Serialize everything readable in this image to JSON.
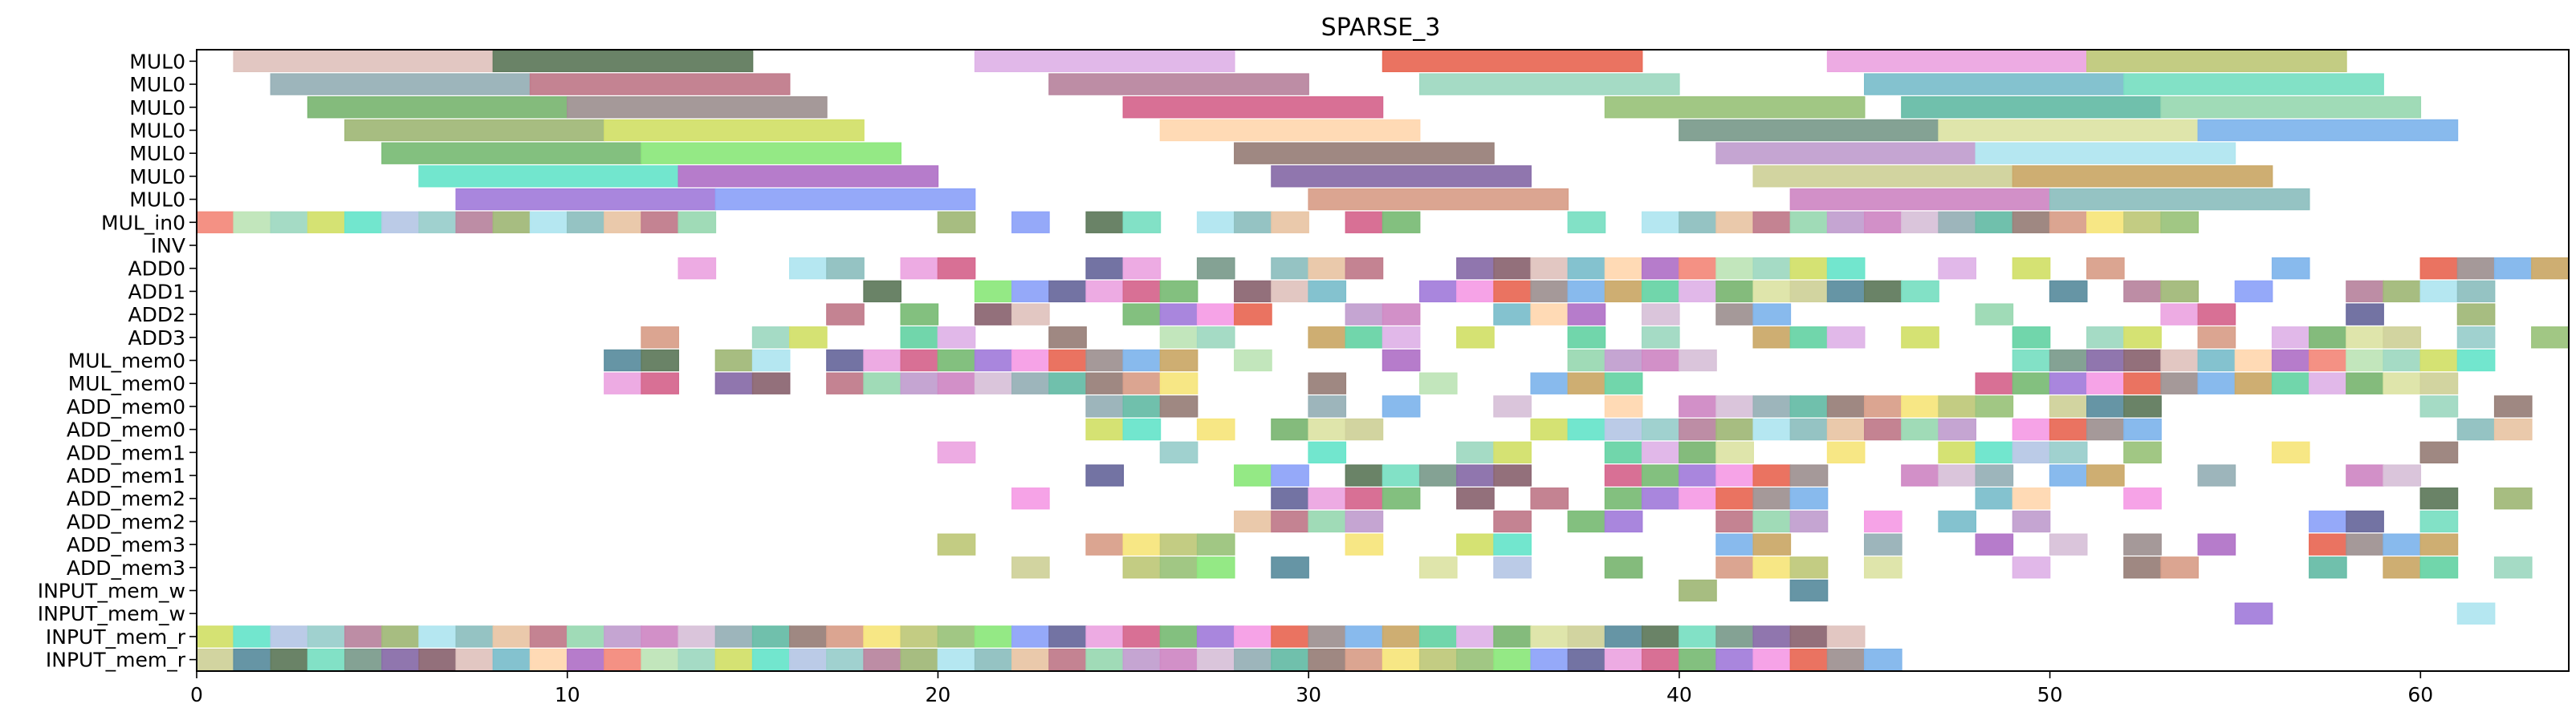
{
  "chart_data": {
    "type": "gantt",
    "title": "SPARSE_3",
    "xlabel": "",
    "ylabel": "",
    "xlim": [
      0,
      64
    ],
    "x_ticks": [
      0,
      10,
      20,
      30,
      40,
      50,
      60
    ],
    "grid": false,
    "legend": "none",
    "rows": [
      "MUL0",
      "MUL0",
      "MUL0",
      "MUL0",
      "MUL0",
      "MUL0",
      "MUL0",
      "MUL_in0",
      "INV",
      "ADD0",
      "ADD1",
      "ADD2",
      "ADD3",
      "MUL_mem0",
      "MUL_mem0",
      "ADD_mem0",
      "ADD_mem0",
      "ADD_mem1",
      "ADD_mem1",
      "ADD_mem2",
      "ADD_mem2",
      "ADD_mem3",
      "ADD_mem3",
      "INPUT_mem_w",
      "INPUT_mem_w",
      "INPUT_mem_r",
      "INPUT_mem_r"
    ],
    "palette": [
      "#e0c4bf",
      "#627c5f",
      "#dfb4e8",
      "#e96c58",
      "#eca6e2",
      "#c0c97c",
      "#98b1b7",
      "#c17c8c",
      "#b987a0",
      "#a0d9c2",
      "#7dbfcc",
      "#7bdfc3",
      "#7db775",
      "#a09393",
      "#d6688f",
      "#9cc47d",
      "#68bda8",
      "#9bd9b3",
      "#a2b97a",
      "#d3e06c",
      "#ffd8b1",
      "#7d9d8e",
      "#dde4a6",
      "#82b6ec",
      "#7cbd78",
      "#8ee87e",
      "#9a827b",
      "#c2a0d0",
      "#b1e6f0",
      "#6ae5cb",
      "#b275c8",
      "#8a6faa",
      "#d0d29b",
      "#cbaa6a",
      "#a47fdb",
      "#8fa4f9",
      "#d9a08b",
      "#d08ac5",
      "#8fc0c0",
      "#b7c8e6",
      "#f38b7d",
      "#8d6874",
      "#5e8fa0",
      "#69d4a6",
      "#f59ee6",
      "#6b6b9e",
      "#f7e67e",
      "#d8c2d9",
      "#e9c6a6",
      "#9bcfcc",
      "#bfe5b8"
    ],
    "tasks": [
      {
        "row": 0,
        "start": 1,
        "end": 8,
        "color": "#e0c4bf"
      },
      {
        "row": 0,
        "start": 8,
        "end": 15,
        "color": "#627c5f"
      },
      {
        "row": 0,
        "start": 21,
        "end": 28,
        "color": "#dfb4e8"
      },
      {
        "row": 0,
        "start": 32,
        "end": 39,
        "color": "#e96c58"
      },
      {
        "row": 0,
        "start": 44,
        "end": 51,
        "color": "#eca6e2"
      },
      {
        "row": 0,
        "start": 51,
        "end": 58,
        "color": "#c0c97c"
      },
      {
        "row": 1,
        "start": 2,
        "end": 9,
        "color": "#98b1b7"
      },
      {
        "row": 1,
        "start": 9,
        "end": 16,
        "color": "#c17c8c"
      },
      {
        "row": 1,
        "start": 23,
        "end": 30,
        "color": "#b987a0"
      },
      {
        "row": 1,
        "start": 33,
        "end": 40,
        "color": "#a0d9c2"
      },
      {
        "row": 1,
        "start": 45,
        "end": 52,
        "color": "#7dbfcc"
      },
      {
        "row": 1,
        "start": 52,
        "end": 59,
        "color": "#7bdfc3"
      },
      {
        "row": 2,
        "start": 3,
        "end": 10,
        "color": "#7db775"
      },
      {
        "row": 2,
        "start": 10,
        "end": 17,
        "color": "#a09393"
      },
      {
        "row": 2,
        "start": 25,
        "end": 32,
        "color": "#d6688f"
      },
      {
        "row": 2,
        "start": 38,
        "end": 45,
        "color": "#9cc47d"
      },
      {
        "row": 2,
        "start": 46,
        "end": 53,
        "color": "#68bda8"
      },
      {
        "row": 2,
        "start": 53,
        "end": 60,
        "color": "#9bd9b3"
      },
      {
        "row": 3,
        "start": 4,
        "end": 11,
        "color": "#a2b97a"
      },
      {
        "row": 3,
        "start": 11,
        "end": 18,
        "color": "#d3e06c"
      },
      {
        "row": 3,
        "start": 26,
        "end": 33,
        "color": "#ffd8b1"
      },
      {
        "row": 3,
        "start": 40,
        "end": 47,
        "color": "#7d9d8e"
      },
      {
        "row": 3,
        "start": 47,
        "end": 54,
        "color": "#dde4a6"
      },
      {
        "row": 3,
        "start": 54,
        "end": 61,
        "color": "#82b6ec"
      },
      {
        "row": 4,
        "start": 5,
        "end": 12,
        "color": "#7cbd78"
      },
      {
        "row": 4,
        "start": 12,
        "end": 19,
        "color": "#8ee87e"
      },
      {
        "row": 4,
        "start": 28,
        "end": 35,
        "color": "#9a827b"
      },
      {
        "row": 4,
        "start": 41,
        "end": 48,
        "color": "#c2a0d0"
      },
      {
        "row": 4,
        "start": 48,
        "end": 55,
        "color": "#b1e6f0"
      },
      {
        "row": 5,
        "start": 6,
        "end": 13,
        "color": "#6ae5cb"
      },
      {
        "row": 5,
        "start": 13,
        "end": 20,
        "color": "#b275c8"
      },
      {
        "row": 5,
        "start": 29,
        "end": 36,
        "color": "#8a6faa"
      },
      {
        "row": 5,
        "start": 42,
        "end": 49,
        "color": "#d0d29b"
      },
      {
        "row": 5,
        "start": 49,
        "end": 56,
        "color": "#cbaa6a"
      },
      {
        "row": 6,
        "start": 7,
        "end": 14,
        "color": "#a47fdb"
      },
      {
        "row": 6,
        "start": 14,
        "end": 21,
        "color": "#8fa4f9"
      },
      {
        "row": 6,
        "start": 30,
        "end": 37,
        "color": "#d9a08b"
      },
      {
        "row": 6,
        "start": 43,
        "end": 50,
        "color": "#d08ac5"
      },
      {
        "row": 6,
        "start": 50,
        "end": 57,
        "color": "#8fc0c0"
      }
    ],
    "cells": [
      [
        7,
        [
          0,
          1,
          2,
          3,
          4,
          5,
          6,
          7,
          8,
          9,
          10,
          11,
          12,
          13,
          20,
          22,
          24,
          25,
          27,
          28,
          29,
          31,
          32,
          37,
          39,
          40,
          41,
          42,
          43,
          44,
          45,
          46,
          47,
          48,
          49,
          50,
          51,
          52,
          53
        ]
      ],
      [
        9,
        [
          13,
          16,
          17,
          19,
          20,
          24,
          25,
          27,
          29,
          30,
          31,
          34,
          35,
          36,
          37,
          38,
          39,
          40,
          41,
          42,
          43,
          44,
          47,
          49,
          51,
          56,
          60,
          61,
          62,
          63
        ]
      ],
      [
        10,
        [
          18,
          21,
          22,
          23,
          24,
          25,
          26,
          28,
          29,
          30,
          33,
          34,
          35,
          36,
          37,
          38,
          39,
          40,
          41,
          42,
          43,
          44,
          45,
          46,
          50,
          52,
          53,
          55,
          58,
          59,
          60,
          61
        ]
      ],
      [
        11,
        [
          17,
          19,
          21,
          22,
          25,
          26,
          27,
          28,
          31,
          32,
          35,
          36,
          37,
          39,
          41,
          42,
          48,
          53,
          54,
          58,
          61
        ]
      ],
      [
        12,
        [
          12,
          15,
          16,
          19,
          20,
          23,
          26,
          27,
          30,
          31,
          32,
          34,
          37,
          39,
          42,
          43,
          44,
          46,
          49,
          51,
          52,
          54,
          56,
          57,
          58,
          59,
          61,
          63
        ]
      ],
      [
        13,
        [
          11,
          12,
          14,
          15,
          17,
          18,
          19,
          20,
          21,
          22,
          23,
          24,
          25,
          26,
          28,
          32,
          37,
          38,
          39,
          40,
          49,
          50,
          51,
          52,
          53,
          54,
          55,
          56,
          57,
          58,
          59,
          60,
          61
        ]
      ],
      [
        14,
        [
          11,
          12,
          14,
          15,
          17,
          18,
          19,
          20,
          21,
          22,
          23,
          24,
          25,
          26,
          30,
          33,
          36,
          37,
          38,
          48,
          49,
          50,
          51,
          52,
          53,
          54,
          55,
          56,
          57,
          58,
          59,
          60
        ]
      ],
      [
        15,
        [
          24,
          25,
          26,
          30,
          32,
          35,
          38,
          40,
          41,
          42,
          43,
          44,
          45,
          46,
          47,
          48,
          50,
          51,
          52,
          60,
          62
        ]
      ],
      [
        16,
        [
          24,
          25,
          27,
          29,
          30,
          31,
          36,
          37,
          38,
          39,
          40,
          41,
          42,
          43,
          44,
          45,
          46,
          47,
          49,
          50,
          51,
          52,
          61,
          62
        ]
      ],
      [
        17,
        [
          20,
          26,
          30,
          34,
          35,
          38,
          39,
          40,
          41,
          44,
          47,
          48,
          49,
          50,
          52,
          56,
          60
        ]
      ],
      [
        18,
        [
          24,
          28,
          29,
          31,
          32,
          33,
          34,
          35,
          38,
          39,
          40,
          41,
          42,
          43,
          46,
          47,
          48,
          50,
          51,
          54,
          58,
          59
        ]
      ],
      [
        19,
        [
          22,
          29,
          30,
          31,
          32,
          34,
          36,
          38,
          39,
          40,
          41,
          42,
          43,
          48,
          49,
          52,
          60,
          62
        ]
      ],
      [
        20,
        [
          28,
          29,
          30,
          31,
          35,
          37,
          38,
          41,
          42,
          43,
          45,
          47,
          49,
          57,
          58,
          60
        ]
      ],
      [
        21,
        [
          20,
          24,
          25,
          26,
          27,
          31,
          34,
          35,
          41,
          42,
          45,
          48,
          50,
          52,
          54,
          57,
          58,
          59,
          60
        ]
      ],
      [
        22,
        [
          22,
          25,
          26,
          27,
          29,
          33,
          35,
          38,
          41,
          42,
          43,
          45,
          49,
          52,
          53,
          57,
          59,
          60,
          62
        ]
      ],
      [
        23,
        [
          40,
          43
        ]
      ],
      [
        24,
        [
          55,
          61
        ]
      ],
      [
        25,
        [
          0,
          1,
          2,
          3,
          4,
          5,
          6,
          7,
          8,
          9,
          10,
          11,
          12,
          13,
          14,
          15,
          16,
          17,
          18,
          19,
          20,
          21,
          22,
          23,
          24,
          25,
          26,
          27,
          28,
          29,
          30,
          31,
          32,
          33,
          34,
          35,
          36,
          37,
          38,
          39,
          40,
          41,
          42,
          43,
          44
        ]
      ],
      [
        26,
        [
          0,
          1,
          2,
          3,
          4,
          5,
          6,
          7,
          8,
          9,
          10,
          11,
          12,
          13,
          14,
          15,
          16,
          17,
          18,
          19,
          20,
          21,
          22,
          23,
          24,
          25,
          26,
          27,
          28,
          29,
          30,
          31,
          32,
          33,
          34,
          35,
          36,
          37,
          38,
          39,
          40,
          41,
          42,
          43,
          44,
          45
        ]
      ]
    ]
  }
}
